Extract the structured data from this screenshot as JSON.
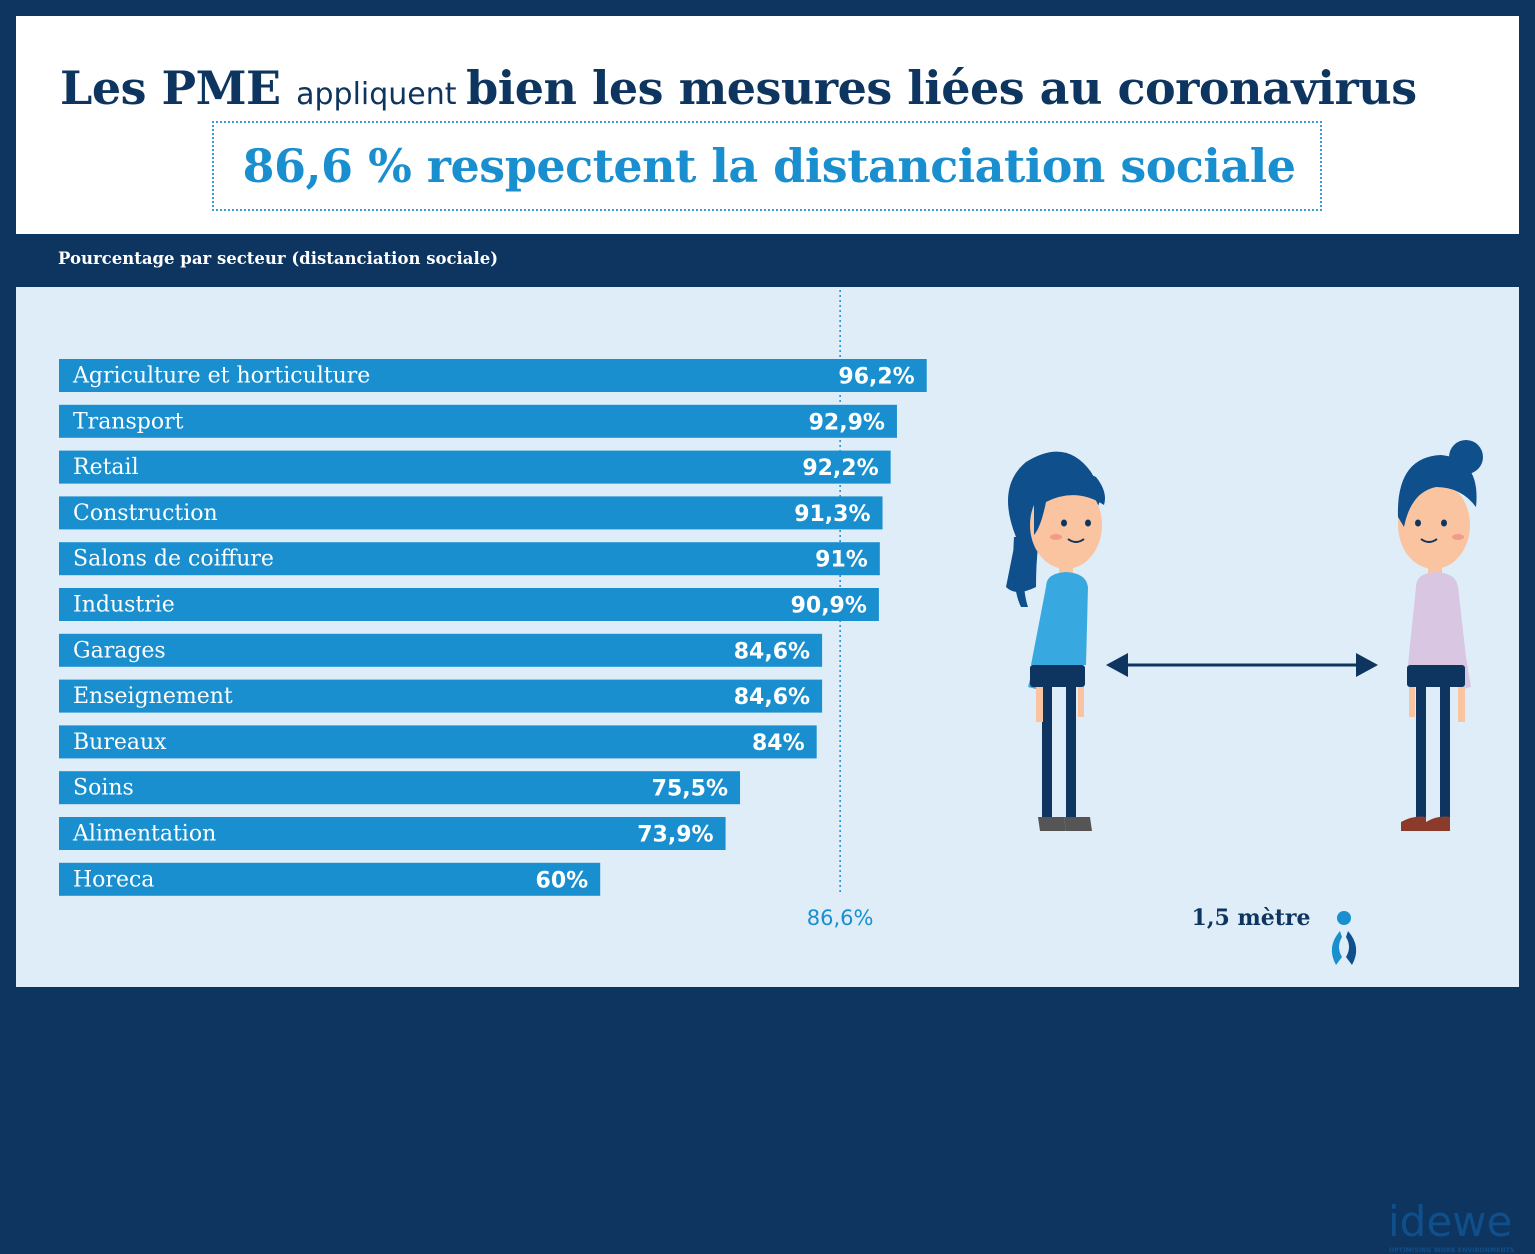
{
  "header": {
    "title_parts": [
      {
        "text": "Les PME ",
        "style": "bold"
      },
      {
        "text": "appliquent ",
        "style": "small"
      },
      {
        "text": "bien les mesures liées au coronavirus",
        "style": "bold"
      }
    ],
    "subtitle": "86,6 % respectent la distanciation sociale"
  },
  "colors": {
    "navy": "#0e355f",
    "bar": "#1a8fcf",
    "panel": "#deedf7",
    "accent": "#1a8fcf"
  },
  "chart_data": {
    "type": "bar",
    "orientation": "horizontal",
    "title": "Pourcentage par secteur (distanciation sociale)",
    "categories": [
      "Agriculture et horticulture",
      "Transport",
      "Retail",
      "Construction",
      "Salons de coiffure",
      "Industrie",
      "Garages",
      "Enseignement",
      "Bureaux",
      "Soins",
      "Alimentation",
      "Horeca"
    ],
    "values": [
      96.2,
      92.9,
      92.2,
      91.3,
      91,
      90.9,
      84.6,
      84.6,
      84,
      75.5,
      73.9,
      60
    ],
    "value_labels": [
      "96,2%",
      "92,9%",
      "92,2%",
      "91,3%",
      "91%",
      "90,9%",
      "84,6%",
      "84,6%",
      "84%",
      "75,5%",
      "73,9%",
      "60%"
    ],
    "unit": "%",
    "xlim": [
      0,
      100
    ],
    "reference_line": {
      "value": 86.6,
      "label": "86,6%",
      "style": "dotted"
    },
    "grid": false,
    "legend": "none"
  },
  "illustration": {
    "distance_label": "1,5 mètre",
    "figures": [
      "woman-left",
      "woman-right"
    ]
  },
  "logo": {
    "name": "idewe",
    "tagline": "OPTIMISING WORK ENVIRONMENTS",
    "icon": "idewe-logo-icon"
  }
}
